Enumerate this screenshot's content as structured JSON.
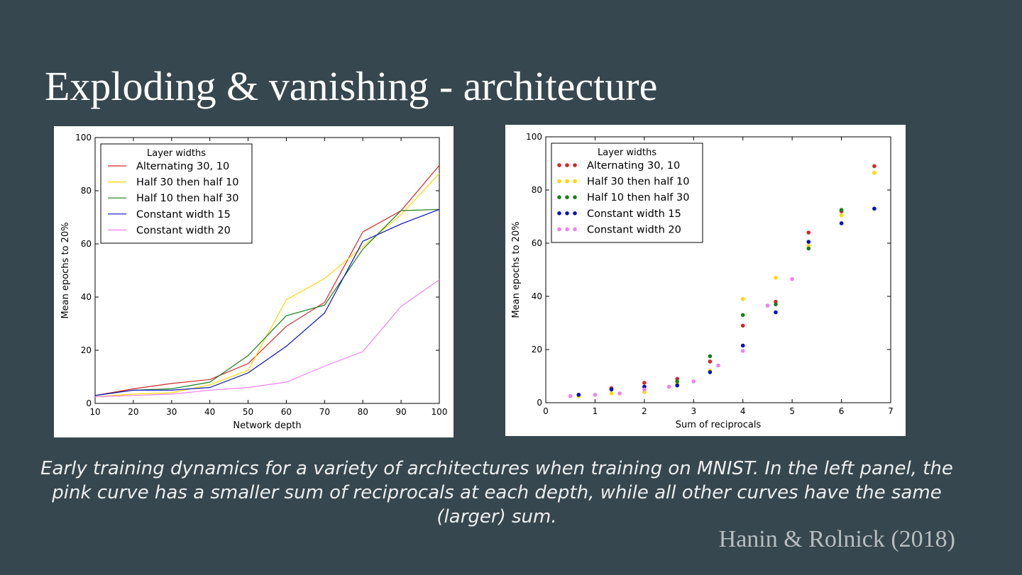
{
  "slide": {
    "title": "Exploding & vanishing - architecture",
    "caption": "Early training dynamics for a variety of architectures when training on MNIST. In the left panel, the pink curve has a smaller sum of reciprocals at each depth, while all other curves have the same (larger) sum.",
    "citation": "Hanin & Rolnick (2018)",
    "background_color": "#36474f"
  },
  "chart_data": [
    {
      "type": "line",
      "xlabel": "Network depth",
      "ylabel": "Mean epochs to 20%",
      "xlim": [
        10,
        100
      ],
      "ylim": [
        0,
        100
      ],
      "xticks": [
        10,
        20,
        30,
        40,
        50,
        60,
        70,
        80,
        90,
        100
      ],
      "yticks": [
        0,
        20,
        40,
        60,
        80,
        100
      ],
      "grid": false,
      "legend_title": "Layer widths",
      "legend_position": "top-left",
      "x": [
        10,
        20,
        30,
        40,
        50,
        60,
        70,
        80,
        90,
        100
      ],
      "series": [
        {
          "name": "Alternating 30, 10",
          "color": "#d62728",
          "values": [
            3,
            5.5,
            7.5,
            9,
            15,
            29,
            38,
            64.5,
            72.5,
            89.5
          ]
        },
        {
          "name": "Half 30 then half 10",
          "color": "#ffd700",
          "values": [
            2.5,
            3.5,
            4,
            7,
            12.5,
            39,
            47,
            59,
            71,
            86.5
          ]
        },
        {
          "name": "Half 10 then half 30",
          "color": "#1a7f1a",
          "values": [
            3,
            5,
            5.5,
            8,
            18,
            33,
            37,
            58,
            72.5,
            73
          ]
        },
        {
          "name": "Constant width 15",
          "color": "#0a10c0",
          "values": [
            3,
            5,
            5,
            6,
            11.5,
            21.5,
            34,
            61,
            67.5,
            73
          ]
        },
        {
          "name": "Constant width 20",
          "color": "#ee82ee",
          "values": [
            2.5,
            3,
            3.5,
            5,
            6,
            8,
            14,
            19.5,
            36.5,
            46.5
          ]
        }
      ]
    },
    {
      "type": "scatter",
      "xlabel": "Sum of reciprocals",
      "ylabel": "Mean epochs to 20%",
      "xlim": [
        0,
        7
      ],
      "ylim": [
        0,
        100
      ],
      "xticks": [
        0,
        1,
        2,
        3,
        4,
        5,
        6,
        7
      ],
      "yticks": [
        0,
        20,
        40,
        60,
        80,
        100
      ],
      "grid": false,
      "legend_title": "Layer widths",
      "legend_position": "top-left",
      "series": [
        {
          "name": "Alternating 30, 10",
          "color": "#d62728",
          "points": [
            [
              0.667,
              3
            ],
            [
              1.333,
              5.5
            ],
            [
              2,
              7.5
            ],
            [
              2.667,
              9
            ],
            [
              3.333,
              15.5
            ],
            [
              4,
              29
            ],
            [
              4.667,
              38
            ],
            [
              5.333,
              64
            ],
            [
              6,
              72
            ],
            [
              6.667,
              89
            ]
          ]
        },
        {
          "name": "Half 30 then half 10",
          "color": "#ffd700",
          "points": [
            [
              0.667,
              2.5
            ],
            [
              1.333,
              3.5
            ],
            [
              2,
              4
            ],
            [
              2.667,
              7
            ],
            [
              3.333,
              12
            ],
            [
              4,
              39
            ],
            [
              4.667,
              47
            ],
            [
              5.333,
              59
            ],
            [
              6,
              70.5
            ],
            [
              6.667,
              86.5
            ]
          ]
        },
        {
          "name": "Half 10 then half 30",
          "color": "#1a7f1a",
          "points": [
            [
              0.667,
              3
            ],
            [
              1.333,
              5
            ],
            [
              2,
              6
            ],
            [
              2.667,
              8
            ],
            [
              3.333,
              17.5
            ],
            [
              4,
              33
            ],
            [
              4.667,
              37
            ],
            [
              5.333,
              58
            ],
            [
              6,
              72.5
            ],
            [
              6.667,
              73
            ]
          ]
        },
        {
          "name": "Constant width 15",
          "color": "#0a10c0",
          "points": [
            [
              0.667,
              3
            ],
            [
              1.333,
              5
            ],
            [
              2,
              6
            ],
            [
              2.667,
              6.5
            ],
            [
              3.333,
              11.5
            ],
            [
              4,
              21.5
            ],
            [
              4.667,
              34
            ],
            [
              5.333,
              60.5
            ],
            [
              6,
              67.5
            ],
            [
              6.667,
              73
            ]
          ]
        },
        {
          "name": "Constant width 20",
          "color": "#ee82ee",
          "points": [
            [
              0.5,
              2.5
            ],
            [
              1,
              3
            ],
            [
              1.5,
              3.5
            ],
            [
              2,
              5
            ],
            [
              2.5,
              6
            ],
            [
              3,
              8
            ],
            [
              3.5,
              14
            ],
            [
              4,
              19.5
            ],
            [
              4.5,
              36.5
            ],
            [
              5,
              46.5
            ]
          ]
        }
      ]
    }
  ]
}
